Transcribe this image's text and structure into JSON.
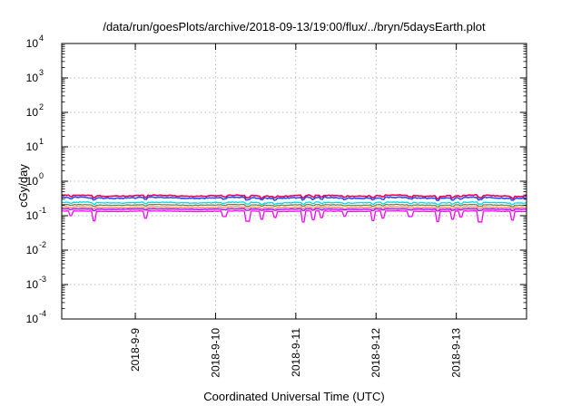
{
  "chart_data": {
    "type": "line",
    "title": "/data/run/goesPlots/archive/2018-09-13/19:00/flux/../bryn/5daysEarth.plot",
    "xlabel": "Coordinated Universal Time (UTC)",
    "ylabel": "cGy/day",
    "yscale": "log",
    "ylim": [
      0.0001,
      10000
    ],
    "y_ticks": [
      {
        "base": "10",
        "exp": "-4",
        "value": 0.0001
      },
      {
        "base": "10",
        "exp": "-3",
        "value": 0.001
      },
      {
        "base": "10",
        "exp": "-2",
        "value": 0.01
      },
      {
        "base": "10",
        "exp": "-1",
        "value": 0.1
      },
      {
        "base": "10",
        "exp": "0",
        "value": 1
      },
      {
        "base": "10",
        "exp": "1",
        "value": 10
      },
      {
        "base": "10",
        "exp": "2",
        "value": 100
      },
      {
        "base": "10",
        "exp": "3",
        "value": 1000
      },
      {
        "base": "10",
        "exp": "4",
        "value": 10000
      }
    ],
    "xlim": [
      "2018-09-08 02:00",
      "2018-09-13 21:00"
    ],
    "x_ticks": [
      {
        "label": "2018-9-9",
        "value": "2018-09-09 00:00"
      },
      {
        "label": "2018-9-10",
        "value": "2018-09-10 00:00"
      },
      {
        "label": "2018-9-11",
        "value": "2018-09-11 00:00"
      },
      {
        "label": "2018-9-12",
        "value": "2018-09-12 00:00"
      },
      {
        "label": "2018-9-13",
        "value": "2018-09-13 00:00"
      }
    ],
    "grid": true,
    "series": [
      {
        "color": "#e8004a",
        "level": 0.38,
        "amplitude": 0.06,
        "dips": 0.15
      },
      {
        "color": "#2a4bff",
        "level": 0.33,
        "amplitude": 0.06,
        "dips": 0.15
      },
      {
        "color": "#00d8e8",
        "level": 0.24,
        "amplitude": 0.05,
        "dips": 0.12
      },
      {
        "color": "#6b7f44",
        "level": 0.205,
        "amplitude": 0.04,
        "dips": 0.1
      },
      {
        "color": "#ff7a55",
        "level": 0.175,
        "amplitude": 0.04,
        "dips": 0.1
      },
      {
        "color": "#a000ff",
        "level": 0.155,
        "amplitude": 0.03,
        "dips": 0.1
      },
      {
        "color": "#ff00ff",
        "level": 0.135,
        "amplitude": 0.03,
        "dips": 0.55
      }
    ]
  }
}
